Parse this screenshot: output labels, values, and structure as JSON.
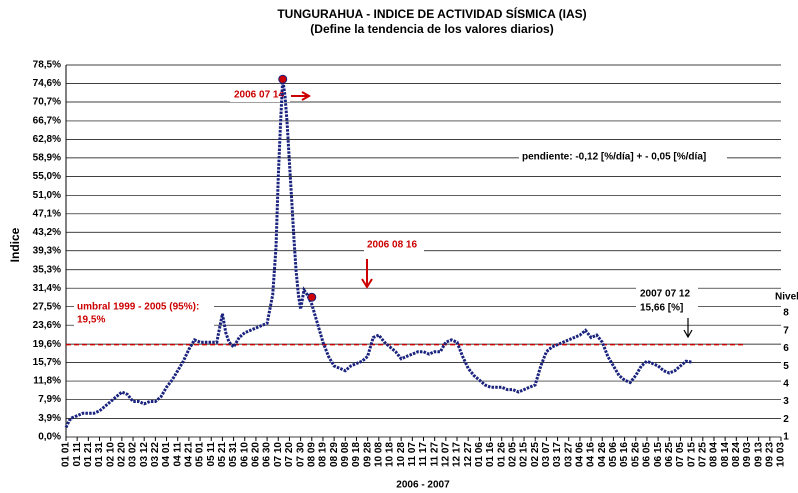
{
  "chart_data": {
    "type": "line",
    "title": "TUNGURAHUA - INDICE DE ACTIVIDAD SÍSMICA (IAS)",
    "subtitle": "(Define la tendencia de los valores diarios)",
    "y_label": "Indice",
    "x_label": "2006 - 2007",
    "y2_label": "Nivel",
    "xlim": [
      0,
      640
    ],
    "xticks": [
      {
        "value": 0,
        "label": "01 01"
      },
      {
        "value": 10,
        "label": "01 11"
      },
      {
        "value": 20,
        "label": "01 21"
      },
      {
        "value": 30,
        "label": "01 31"
      },
      {
        "value": 40,
        "label": "02 10"
      },
      {
        "value": 50,
        "label": "02 20"
      },
      {
        "value": 60,
        "label": "03 02"
      },
      {
        "value": 70,
        "label": "03 12"
      },
      {
        "value": 80,
        "label": "03 22"
      },
      {
        "value": 90,
        "label": "04 01"
      },
      {
        "value": 100,
        "label": "04 11"
      },
      {
        "value": 110,
        "label": "04 21"
      },
      {
        "value": 120,
        "label": "05 01"
      },
      {
        "value": 130,
        "label": "05 11"
      },
      {
        "value": 140,
        "label": "05 21"
      },
      {
        "value": 150,
        "label": "05 31"
      },
      {
        "value": 160,
        "label": "06 10"
      },
      {
        "value": 170,
        "label": "06 20"
      },
      {
        "value": 180,
        "label": "06 30"
      },
      {
        "value": 190,
        "label": "07 10"
      },
      {
        "value": 200,
        "label": "07 20"
      },
      {
        "value": 210,
        "label": "07 30"
      },
      {
        "value": 220,
        "label": "08 09"
      },
      {
        "value": 230,
        "label": "08 19"
      },
      {
        "value": 240,
        "label": "08 29"
      },
      {
        "value": 250,
        "label": "09 08"
      },
      {
        "value": 260,
        "label": "09 18"
      },
      {
        "value": 270,
        "label": "09 28"
      },
      {
        "value": 280,
        "label": "10 08"
      },
      {
        "value": 290,
        "label": "10 18"
      },
      {
        "value": 300,
        "label": "10 28"
      },
      {
        "value": 310,
        "label": "11 07"
      },
      {
        "value": 320,
        "label": "11 17"
      },
      {
        "value": 330,
        "label": "11 27"
      },
      {
        "value": 340,
        "label": "12 07"
      },
      {
        "value": 350,
        "label": "12 17"
      },
      {
        "value": 360,
        "label": "12 27"
      },
      {
        "value": 370,
        "label": "01 06"
      },
      {
        "value": 380,
        "label": "01 16"
      },
      {
        "value": 390,
        "label": "01 26"
      },
      {
        "value": 400,
        "label": "02 05"
      },
      {
        "value": 410,
        "label": "02 15"
      },
      {
        "value": 420,
        "label": "02 25"
      },
      {
        "value": 430,
        "label": "03 07"
      },
      {
        "value": 440,
        "label": "03 17"
      },
      {
        "value": 450,
        "label": "03 27"
      },
      {
        "value": 460,
        "label": "04 06"
      },
      {
        "value": 470,
        "label": "04 16"
      },
      {
        "value": 480,
        "label": "04 26"
      },
      {
        "value": 490,
        "label": "05 06"
      },
      {
        "value": 500,
        "label": "05 16"
      },
      {
        "value": 510,
        "label": "05 26"
      },
      {
        "value": 520,
        "label": "06 05"
      },
      {
        "value": 530,
        "label": "06 15"
      },
      {
        "value": 540,
        "label": "06 25"
      },
      {
        "value": 550,
        "label": "07 05"
      },
      {
        "value": 560,
        "label": "07 15"
      },
      {
        "value": 570,
        "label": "07 25"
      },
      {
        "value": 580,
        "label": "08 04"
      },
      {
        "value": 590,
        "label": "08 14"
      },
      {
        "value": 600,
        "label": "08 24"
      },
      {
        "value": 610,
        "label": "09 03"
      },
      {
        "value": 620,
        "label": "09 13"
      },
      {
        "value": 630,
        "label": "09 23"
      },
      {
        "value": 640,
        "label": "10 03"
      }
    ],
    "ylim": [
      0,
      78.5
    ],
    "yticks": [
      {
        "value": 0,
        "label": "0,0%"
      },
      {
        "value": 3.9,
        "label": "3,9%"
      },
      {
        "value": 7.9,
        "label": "7,9%"
      },
      {
        "value": 11.8,
        "label": "11,8%"
      },
      {
        "value": 15.7,
        "label": "15,7%"
      },
      {
        "value": 19.6,
        "label": "19,6%"
      },
      {
        "value": 23.6,
        "label": "23,6%"
      },
      {
        "value": 27.5,
        "label": "27,5%"
      },
      {
        "value": 31.4,
        "label": "31,4%"
      },
      {
        "value": 35.3,
        "label": "35,3%"
      },
      {
        "value": 39.3,
        "label": "39,3%"
      },
      {
        "value": 43.2,
        "label": "43,2%"
      },
      {
        "value": 47.1,
        "label": "47,1%"
      },
      {
        "value": 51.0,
        "label": "51,0%"
      },
      {
        "value": 55.0,
        "label": "55,0%"
      },
      {
        "value": 58.9,
        "label": "58,9%"
      },
      {
        "value": 62.8,
        "label": "62,8%"
      },
      {
        "value": 66.7,
        "label": "66,7%"
      },
      {
        "value": 70.7,
        "label": "70,7%"
      },
      {
        "value": 74.6,
        "label": "74,6%"
      },
      {
        "value": 78.5,
        "label": "78,5%"
      }
    ],
    "y2lim": [
      1,
      22
    ],
    "y2ticks": [
      1,
      2,
      3,
      4,
      5,
      6,
      7,
      8
    ],
    "grid": true,
    "color": "#1a237e",
    "x": [
      0,
      3,
      5,
      10,
      15,
      20,
      25,
      30,
      35,
      40,
      45,
      50,
      55,
      60,
      65,
      70,
      75,
      80,
      85,
      90,
      95,
      100,
      105,
      110,
      115,
      120,
      125,
      130,
      135,
      140,
      143,
      146,
      150,
      155,
      160,
      165,
      170,
      175,
      180,
      185,
      188,
      190,
      192,
      194,
      196,
      198,
      200,
      202,
      204,
      206,
      208,
      210,
      213,
      216,
      220,
      225,
      230,
      235,
      240,
      245,
      250,
      255,
      260,
      265,
      270,
      275,
      280,
      285,
      290,
      295,
      300,
      305,
      310,
      315,
      320,
      325,
      330,
      335,
      340,
      345,
      350,
      355,
      360,
      365,
      370,
      375,
      380,
      385,
      390,
      395,
      400,
      405,
      410,
      415,
      420,
      425,
      430,
      435,
      440,
      445,
      450,
      455,
      460,
      465,
      470,
      475,
      480,
      485,
      490,
      495,
      500,
      505,
      510,
      515,
      520,
      525,
      530,
      535,
      540,
      545,
      550,
      555,
      560
    ],
    "values": [
      2,
      3.5,
      4,
      4.5,
      5,
      5,
      5,
      5.5,
      6.5,
      7.5,
      8.5,
      9.5,
      9,
      7.5,
      7.5,
      7,
      7.5,
      7.5,
      8.5,
      10.5,
      12,
      14,
      16,
      18.5,
      20.5,
      20,
      20,
      20,
      20,
      26,
      22,
      20,
      19,
      21,
      22,
      22.5,
      23,
      23.5,
      24,
      30,
      40,
      55,
      66,
      75.5,
      72,
      66,
      58,
      50,
      42,
      35,
      30,
      27,
      31,
      30,
      28,
      24,
      20,
      17,
      15,
      14.5,
      14,
      15,
      15.5,
      16,
      17,
      21,
      21.5,
      20,
      19,
      18,
      16.5,
      17,
      17.5,
      18,
      18,
      17.5,
      18,
      18,
      20,
      20.5,
      20,
      17,
      14.5,
      13,
      12,
      11,
      10.5,
      10.5,
      10.5,
      10,
      10,
      9.5,
      10,
      10.5,
      11,
      15,
      18,
      19,
      19.5,
      20,
      20.5,
      21,
      21.5,
      22.5,
      21,
      21.5,
      20,
      17,
      15,
      13,
      12,
      11.5,
      13,
      15,
      16,
      15.5,
      15,
      14,
      13.5,
      14,
      15,
      16,
      15.8
    ],
    "threshold": {
      "value": 19.5,
      "color": "#cc0000",
      "label": "umbral 1999 - 2005 (95%):",
      "value_label": "19,5%"
    },
    "highlights": [
      {
        "x": 194,
        "y": 75.5,
        "color": "#cc0000"
      },
      {
        "x": 220,
        "y": 29.5,
        "color": "#cc0000"
      }
    ],
    "annotations": [
      "2006 07 14",
      "2006 08 16",
      "pendiente: -0,12 [%/día] + - 0,05 [%/día]",
      "2007 07 12",
      "15,66 [%]"
    ]
  }
}
